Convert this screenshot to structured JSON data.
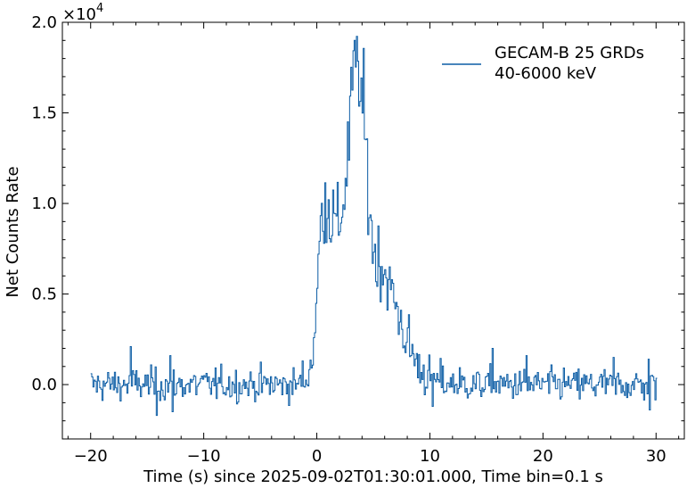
{
  "chart_data": {
    "type": "line",
    "xlabel": "Time (s) since 2025-09-02T01:30:01.000, Time bin=0.1 s",
    "ylabel": "Net Counts Rate",
    "y_multiplier_base": "×10",
    "y_multiplier_exp": "4",
    "xlim": [
      -22.5,
      32.5
    ],
    "ylim": [
      -3000,
      20000
    ],
    "x_ticks": [
      -20,
      -10,
      0,
      10,
      20,
      30
    ],
    "x_tick_labels": [
      "−20",
      "−10",
      "0",
      "10",
      "20",
      "30"
    ],
    "y_ticks": [
      0,
      5000,
      10000,
      15000,
      20000
    ],
    "y_tick_labels": [
      "0.0",
      "0.5",
      "1.0",
      "1.5",
      "2.0"
    ],
    "legend": {
      "placement": "top-right",
      "lines": [
        "GECAM-B 25 GRDs",
        "40-6000 keV"
      ]
    },
    "series": [
      {
        "color": "#0C5DA5",
        "step": 0.1,
        "x_start": -20,
        "x_end": 30,
        "profile_points": [
          [
            -20,
            0
          ],
          [
            -2.0,
            0
          ],
          [
            -1.0,
            300
          ],
          [
            -0.5,
            1200
          ],
          [
            0,
            5000
          ],
          [
            0.3,
            9000
          ],
          [
            0.7,
            10300
          ],
          [
            1.2,
            9500
          ],
          [
            1.7,
            8600
          ],
          [
            2.2,
            9600
          ],
          [
            2.6,
            12000
          ],
          [
            3.0,
            15500
          ],
          [
            3.3,
            18200
          ],
          [
            3.7,
            17000
          ],
          [
            4.1,
            14800
          ],
          [
            4.6,
            10000
          ],
          [
            5.0,
            7200
          ],
          [
            5.6,
            6800
          ],
          [
            6.2,
            5800
          ],
          [
            7.0,
            4200
          ],
          [
            8.0,
            2300
          ],
          [
            9.0,
            900
          ],
          [
            10.0,
            400
          ],
          [
            11.0,
            150
          ],
          [
            13.0,
            0
          ],
          [
            30,
            0
          ]
        ],
        "noise_sd": 450,
        "spikes": [
          [
            -16.5,
            2100
          ],
          [
            -14.2,
            -1700
          ],
          [
            -12.8,
            -1500
          ],
          [
            -13.0,
            1600
          ],
          [
            3.3,
            19000
          ],
          [
            15.5,
            2000
          ],
          [
            18.5,
            1600
          ],
          [
            26.2,
            1500
          ],
          [
            29.3,
            1400
          ],
          [
            29.4,
            -1400
          ],
          [
            10.2,
            -1200
          ]
        ]
      }
    ]
  }
}
